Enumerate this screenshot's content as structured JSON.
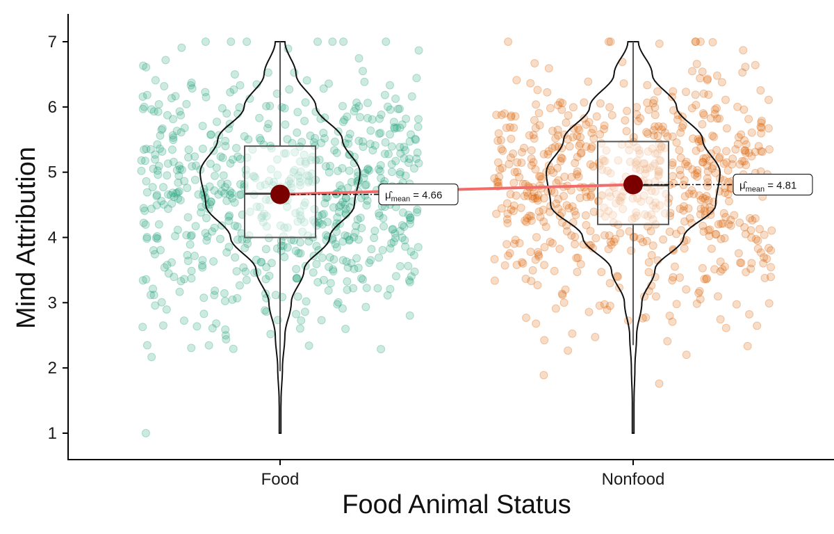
{
  "chart_data": {
    "type": "violin-box-jitter",
    "xlabel": "Food Animal Status",
    "ylabel": "Mind Attribution",
    "ylim": [
      0.6,
      7.4
    ],
    "yticks": [
      "1",
      "2",
      "3",
      "4",
      "5",
      "6",
      "7"
    ],
    "groups": [
      {
        "name": "Food",
        "color": "#1b9e77",
        "n_points": 700,
        "box": {
          "q1": 4.0,
          "median": 4.67,
          "q3": 5.4,
          "whisker_low": 1.95,
          "whisker_high": 7.0
        },
        "mean": 4.66,
        "mean_label_prefix": "μ̂",
        "mean_label_sub": "mean",
        "mean_label_value": "= 4.66",
        "violin": [
          [
            1.0,
            0.0
          ],
          [
            1.5,
            0.012
          ],
          [
            2.0,
            0.03
          ],
          [
            2.5,
            0.06
          ],
          [
            3.0,
            0.14
          ],
          [
            3.5,
            0.3
          ],
          [
            4.0,
            0.62
          ],
          [
            4.5,
            0.93
          ],
          [
            5.0,
            1.0
          ],
          [
            5.5,
            0.78
          ],
          [
            6.0,
            0.45
          ],
          [
            6.5,
            0.2
          ],
          [
            7.0,
            0.06
          ]
        ],
        "violin_halfwidth_max": 115
      },
      {
        "name": "Nonfood",
        "color": "#d95f02",
        "n_points": 700,
        "box": {
          "q1": 4.2,
          "median": 4.8,
          "q3": 5.47,
          "whisker_low": 2.35,
          "whisker_high": 7.0
        },
        "mean": 4.81,
        "mean_label_prefix": "μ̂",
        "mean_label_sub": "mean",
        "mean_label_value": "= 4.81",
        "violin": [
          [
            1.0,
            0.0
          ],
          [
            1.5,
            0.01
          ],
          [
            2.0,
            0.02
          ],
          [
            2.5,
            0.04
          ],
          [
            3.0,
            0.1
          ],
          [
            3.5,
            0.25
          ],
          [
            4.0,
            0.58
          ],
          [
            4.5,
            0.95
          ],
          [
            5.0,
            1.0
          ],
          [
            5.5,
            0.8
          ],
          [
            6.0,
            0.5
          ],
          [
            6.5,
            0.22
          ],
          [
            7.0,
            0.06
          ]
        ],
        "violin_halfwidth_max": 125
      }
    ],
    "mean_line_color": "#f26b6b",
    "mean_point_color": "#7a0000"
  }
}
